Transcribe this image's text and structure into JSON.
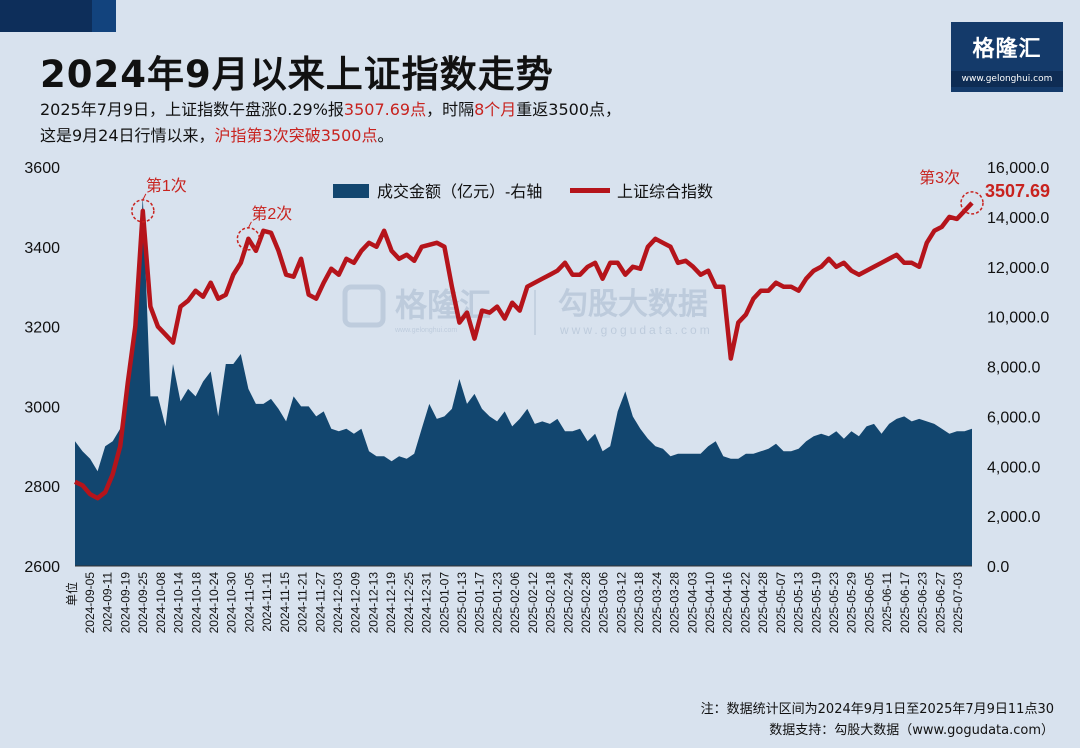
{
  "header": {
    "title": "2024年9月以来上证指数走势",
    "subtitle_line1": [
      {
        "text": "2025年7月9日，上证指数午盘涨0.29%报",
        "hl": false
      },
      {
        "text": "3507.69点",
        "hl": true
      },
      {
        "text": "，时隔",
        "hl": false
      },
      {
        "text": "8个月",
        "hl": true
      },
      {
        "text": "重返3500点，",
        "hl": false
      }
    ],
    "subtitle_line2": [
      {
        "text": "这是9月24日行情以来，",
        "hl": false
      },
      {
        "text": "沪指第3次突破3500点",
        "hl": true
      },
      {
        "text": "。",
        "hl": false
      }
    ]
  },
  "logo": {
    "name": "格隆汇",
    "url": "www.gelonghui.com"
  },
  "colors": {
    "volume": "#12466f",
    "index": "#b5141b",
    "accent": "#c8231f"
  },
  "chart_data": {
    "type": "line+area",
    "legend": [
      "成交金额（亿元）-右轴",
      "上证综合指数"
    ],
    "legend_placement": "top-center",
    "left_axis": {
      "min": 2600,
      "max": 3600,
      "ticks": [
        "2600",
        "2800",
        "3000",
        "3200",
        "3400",
        "3600"
      ]
    },
    "right_axis": {
      "min": 0,
      "max": 16000,
      "ticks": [
        "0.0",
        "2,000.0",
        "4,000.0",
        "6,000.0",
        "8,000.0",
        "10,000.0",
        "12,000.0",
        "14,000.0",
        "16,000.0"
      ]
    },
    "unit_label": "单位",
    "x_ticks": [
      "2024-09-05",
      "2024-09-11",
      "2024-09-19",
      "2024-09-25",
      "2024-10-08",
      "2024-10-14",
      "2024-10-18",
      "2024-10-24",
      "2024-10-30",
      "2024-11-05",
      "2024-11-11",
      "2024-11-15",
      "2024-11-21",
      "2024-11-27",
      "2024-12-03",
      "2024-12-09",
      "2024-12-13",
      "2024-12-19",
      "2024-12-25",
      "2024-12-31",
      "2025-01-07",
      "2025-01-13",
      "2025-01-17",
      "2025-01-23",
      "2025-02-06",
      "2025-02-12",
      "2025-02-18",
      "2025-02-24",
      "2025-02-28",
      "2025-03-06",
      "2025-03-12",
      "2025-03-18",
      "2025-03-24",
      "2025-03-28",
      "2025-04-03",
      "2025-04-10",
      "2025-04-16",
      "2025-04-22",
      "2025-04-28",
      "2025-05-07",
      "2025-05-13",
      "2025-05-19",
      "2025-05-23",
      "2025-05-29",
      "2025-06-05",
      "2025-06-11",
      "2025-06-17",
      "2025-06-23",
      "2025-06-27",
      "2025-07-03"
    ],
    "index_series": [
      2811,
      2802,
      2780,
      2770,
      2785,
      2830,
      2900,
      3060,
      3200,
      3490,
      3250,
      3200,
      3180,
      3160,
      3250,
      3265,
      3290,
      3275,
      3310,
      3270,
      3280,
      3330,
      3360,
      3420,
      3390,
      3440,
      3435,
      3390,
      3330,
      3325,
      3370,
      3280,
      3270,
      3310,
      3345,
      3330,
      3370,
      3360,
      3390,
      3410,
      3400,
      3440,
      3390,
      3370,
      3380,
      3365,
      3400,
      3405,
      3410,
      3400,
      3300,
      3210,
      3235,
      3170,
      3240,
      3235,
      3250,
      3220,
      3260,
      3240,
      3300,
      3310,
      3320,
      3330,
      3340,
      3360,
      3330,
      3330,
      3350,
      3360,
      3320,
      3360,
      3360,
      3330,
      3350,
      3345,
      3400,
      3420,
      3410,
      3400,
      3360,
      3365,
      3350,
      3330,
      3340,
      3300,
      3300,
      3120,
      3210,
      3230,
      3270,
      3290,
      3290,
      3310,
      3300,
      3300,
      3290,
      3320,
      3340,
      3350,
      3370,
      3350,
      3360,
      3340,
      3330,
      3340,
      3350,
      3360,
      3370,
      3380,
      3360,
      3360,
      3350,
      3410,
      3440,
      3450,
      3475,
      3470,
      3490,
      3510
    ],
    "volume_series": [
      5000,
      4600,
      4300,
      3800,
      4800,
      5000,
      5500,
      6800,
      9500,
      14800,
      6800,
      6800,
      5600,
      8100,
      6600,
      7100,
      6800,
      7400,
      7800,
      6000,
      8100,
      8100,
      8500,
      7100,
      6500,
      6500,
      6700,
      6300,
      5800,
      6800,
      6400,
      6400,
      6000,
      6200,
      5500,
      5400,
      5500,
      5300,
      5500,
      4600,
      4400,
      4400,
      4200,
      4400,
      4300,
      4500,
      5500,
      6500,
      5900,
      6000,
      6300,
      7500,
      6500,
      6900,
      6300,
      6000,
      5800,
      6200,
      5600,
      5900,
      6300,
      5700,
      5800,
      5700,
      5900,
      5400,
      5400,
      5500,
      5000,
      5300,
      4600,
      4800,
      6200,
      7000,
      6000,
      5500,
      5100,
      4800,
      4700,
      4400,
      4500,
      4500,
      4500,
      4500,
      4800,
      5000,
      4400,
      4300,
      4300,
      4500,
      4500,
      4600,
      4700,
      4900,
      4600,
      4600,
      4700,
      5000,
      5200,
      5300,
      5200,
      5400,
      5100,
      5400,
      5200,
      5600,
      5700,
      5300,
      5700,
      5900,
      6000,
      5800,
      5900,
      5800,
      5700,
      5500,
      5300,
      5400,
      5400,
      5500
    ]
  },
  "annotations": [
    {
      "label": "第1次",
      "index": 9
    },
    {
      "label": "第2次",
      "index": 23
    },
    {
      "label": "第3次",
      "index": 119
    }
  ],
  "last_value_label": "3507.69",
  "watermarks": [
    {
      "brand": "格隆汇",
      "url": "www.gelonghui.com"
    },
    {
      "brand": "勾股大数据",
      "url": "www.gogudata.com"
    }
  ],
  "footer": {
    "note": "注：数据统计区间为2024年9月1日至2025年7月9日11点30",
    "source": "数据支持：勾股大数据（www.gogudata.com）"
  }
}
